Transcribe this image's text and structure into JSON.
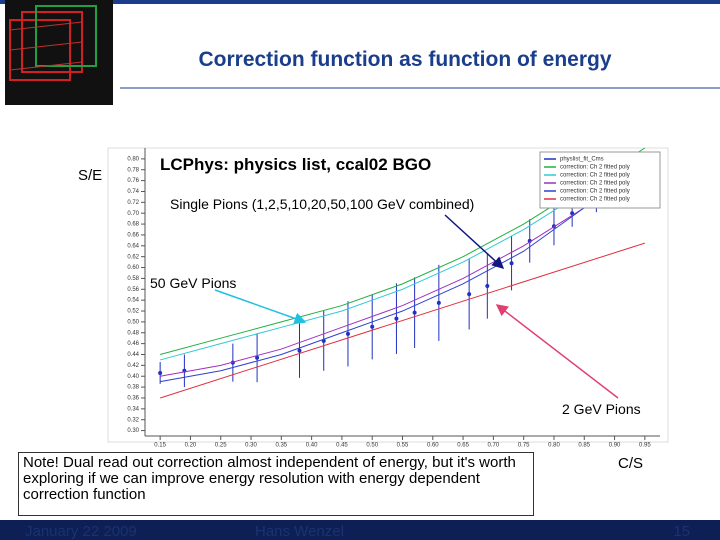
{
  "slide": {
    "title": "Correction function as function of energy",
    "y_label": "S/E",
    "x_label": "C/S",
    "subtitle": "LCPhys: physics list, ccal02 BGO",
    "annotation_single": "Single Pions (1,2,5,10,20,50,100 GeV combined)",
    "annotation_50": "50 GeV Pions",
    "annotation_2": "2 GeV Pions",
    "note": "Note! Dual read out correction almost independent of energy, but it's worth exploring if we can improve energy resolution with energy dependent correction function",
    "footer_date": "January 22 2009",
    "footer_author": "Hans Wenzel",
    "footer_page": "15"
  },
  "chart_data": {
    "type": "line",
    "xlim": [
      0.125,
      0.975
    ],
    "ylim": [
      0.29,
      0.82
    ],
    "xticks": [
      0.15,
      {
        "value": 0.2,
        "label": "0.20"
      },
      0.25,
      {
        "value": 0.3,
        "label": "0.30"
      },
      0.35,
      {
        "value": 0.4,
        "label": "0.40"
      },
      0.45,
      {
        "value": 0.5,
        "label": "0.50"
      },
      0.55,
      {
        "value": 0.6,
        "label": "0.60"
      },
      0.65,
      {
        "value": 0.7,
        "label": "0.70"
      },
      0.75,
      {
        "value": 0.8,
        "label": "0.80"
      },
      0.85,
      {
        "value": 0.9,
        "label": "0.90"
      },
      0.95
    ],
    "yticks": [
      {
        "value": 0.3,
        "label": "0.30"
      },
      0.32,
      0.34,
      0.36,
      0.38,
      {
        "value": 0.4,
        "label": "0.40"
      },
      0.42,
      0.44,
      0.46,
      0.48,
      {
        "value": 0.5,
        "label": "0.50"
      },
      0.52,
      0.54,
      0.56,
      0.58,
      {
        "value": 0.6,
        "label": "0.60"
      },
      0.62,
      0.64,
      0.66,
      0.68,
      {
        "value": 0.7,
        "label": "0.70"
      },
      0.72,
      0.74,
      0.76,
      0.78,
      {
        "value": 0.8,
        "label": "0.80"
      }
    ],
    "series": [
      {
        "name": "physlist_fit_Cms",
        "color": "#2030c0",
        "x": [
          0.15,
          0.19,
          0.27,
          0.31,
          0.38,
          0.42,
          0.46,
          0.5,
          0.54,
          0.57,
          0.61,
          0.66,
          0.69,
          0.73,
          0.76,
          0.8,
          0.83,
          0.87
        ],
        "values": [
          0.406,
          0.41,
          0.425,
          0.434,
          0.447,
          0.465,
          0.478,
          0.491,
          0.506,
          0.517,
          0.535,
          0.551,
          0.566,
          0.608,
          0.649,
          0.676,
          0.7,
          0.722
        ],
        "errors": [
          0.02,
          0.03,
          0.035,
          0.045,
          0.05,
          0.055,
          0.06,
          0.06,
          0.065,
          0.065,
          0.07,
          0.065,
          0.06,
          0.05,
          0.04,
          0.035,
          0.025,
          0.02
        ]
      },
      {
        "name": "correction: Ch 2 fitted poly",
        "color": "#20b040",
        "x": [
          0.15,
          0.25,
          0.35,
          0.45,
          0.55,
          0.65,
          0.75,
          0.85,
          0.95
        ],
        "values": [
          0.44,
          0.47,
          0.5,
          0.53,
          0.57,
          0.62,
          0.68,
          0.75,
          0.82
        ]
      },
      {
        "name": "correction: Ch 2 fitted poly",
        "color": "#30c8d8",
        "x": [
          0.15,
          0.25,
          0.35,
          0.45,
          0.55,
          0.65,
          0.75,
          0.85,
          0.95
        ],
        "values": [
          0.43,
          0.46,
          0.49,
          0.52,
          0.56,
          0.61,
          0.67,
          0.74,
          0.81
        ]
      },
      {
        "name": "correction: Ch 2 fitted poly",
        "color": "#a030c0",
        "x": [
          0.15,
          0.25,
          0.35,
          0.45,
          0.55,
          0.65,
          0.75,
          0.85,
          0.95
        ],
        "values": [
          0.4,
          0.42,
          0.45,
          0.49,
          0.53,
          0.58,
          0.64,
          0.71,
          0.79
        ]
      },
      {
        "name": "correction: Ch 2 fitted poly",
        "color": "#3040d0",
        "x": [
          0.15,
          0.25,
          0.35,
          0.45,
          0.55,
          0.65,
          0.75,
          0.85,
          0.95
        ],
        "values": [
          0.39,
          0.41,
          0.44,
          0.48,
          0.52,
          0.57,
          0.63,
          0.71,
          0.79
        ]
      },
      {
        "name": "correction: Ch 2 fitted poly",
        "color": "#e03040",
        "x": [
          0.15,
          0.95
        ],
        "values": [
          0.36,
          0.645
        ]
      }
    ]
  }
}
